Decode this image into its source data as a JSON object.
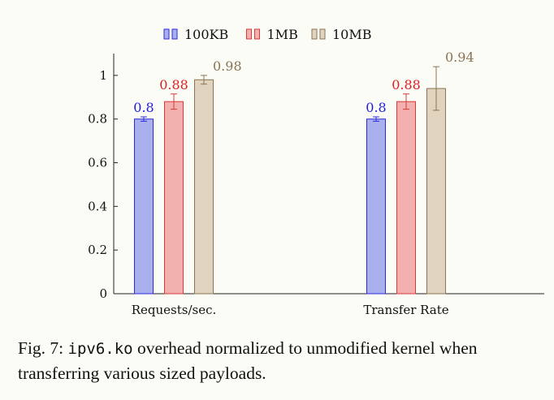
{
  "chart_data": {
    "type": "bar",
    "categories": [
      "Requests/sec.",
      "Transfer Rate"
    ],
    "series": [
      {
        "name": "100KB",
        "values": [
          0.8,
          0.8
        ],
        "errors": [
          0.01,
          0.01
        ],
        "labels": [
          "0.8",
          "0.8"
        ],
        "fill": "#aab0ee",
        "stroke": "#2a2ad8",
        "label_color": "#1f1fe0"
      },
      {
        "name": "1MB",
        "values": [
          0.88,
          0.88
        ],
        "errors": [
          0.035,
          0.035
        ],
        "labels": [
          "0.88",
          "0.88"
        ],
        "fill": "#f2b0ae",
        "stroke": "#d83a3a",
        "label_color": "#e02020"
      },
      {
        "name": "10MB",
        "values": [
          0.98,
          0.94
        ],
        "errors": [
          0.02,
          0.1
        ],
        "labels": [
          "0.98",
          "0.94"
        ],
        "fill": "#e0d4bf",
        "stroke": "#8a7454",
        "label_color": "#8a7454"
      }
    ],
    "yticks": [
      0,
      0.2,
      0.4,
      0.6,
      0.8,
      1
    ],
    "ytick_labels": [
      "0",
      "0.2",
      "0.4",
      "0.6",
      "0.8",
      "1"
    ],
    "ylim": [
      0,
      1.1
    ],
    "legend_position": "top-center",
    "grid": false
  },
  "caption": {
    "prefix": "Fig. 7: ",
    "code": "ipv6.ko",
    "rest": " overhead normalized to unmodified kernel when transferring various sized payloads."
  }
}
